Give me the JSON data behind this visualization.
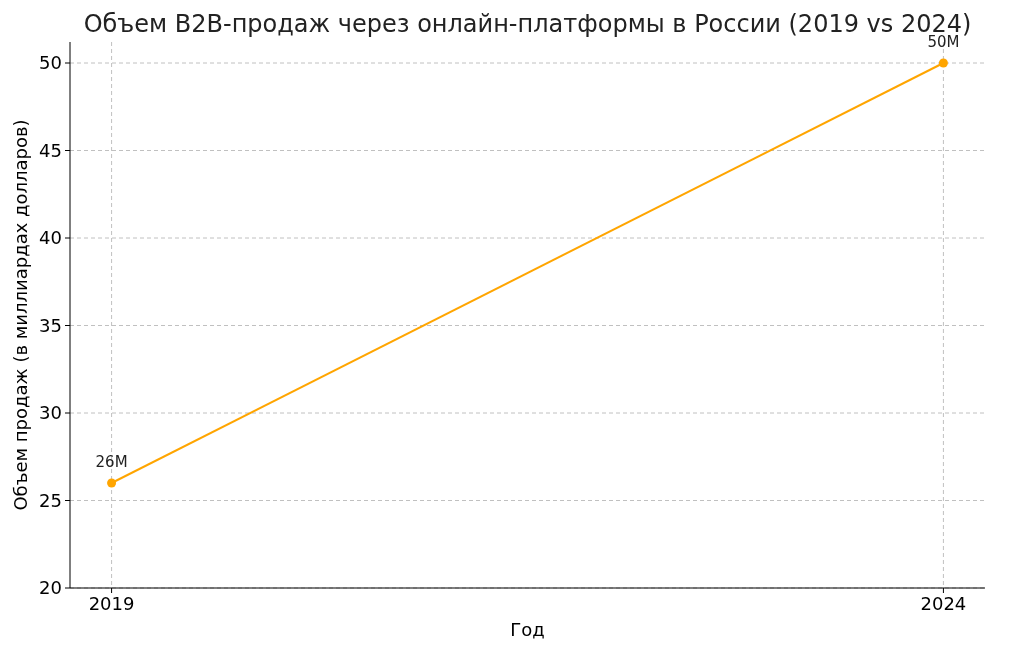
{
  "chart_data": {
    "type": "line",
    "title": "Объем B2B-продаж через онлайн-платформы в России (2019 vs 2024)",
    "xlabel": "Год",
    "ylabel": "Объем продаж (в миллиардах долларов)",
    "x": [
      2019,
      2024
    ],
    "series": [
      {
        "color": "#ffa500",
        "values": [
          26,
          50
        ],
        "value_labels": [
          "26M",
          "50M"
        ]
      }
    ],
    "xlim": [
      2018.75,
      2024.25
    ],
    "xticks": [
      2019,
      2024
    ],
    "ylim": [
      20,
      51.2
    ],
    "yticks": [
      20,
      25,
      30,
      35,
      40,
      45,
      50
    ],
    "grid": true,
    "marker": "circle",
    "line_style": "solid"
  }
}
